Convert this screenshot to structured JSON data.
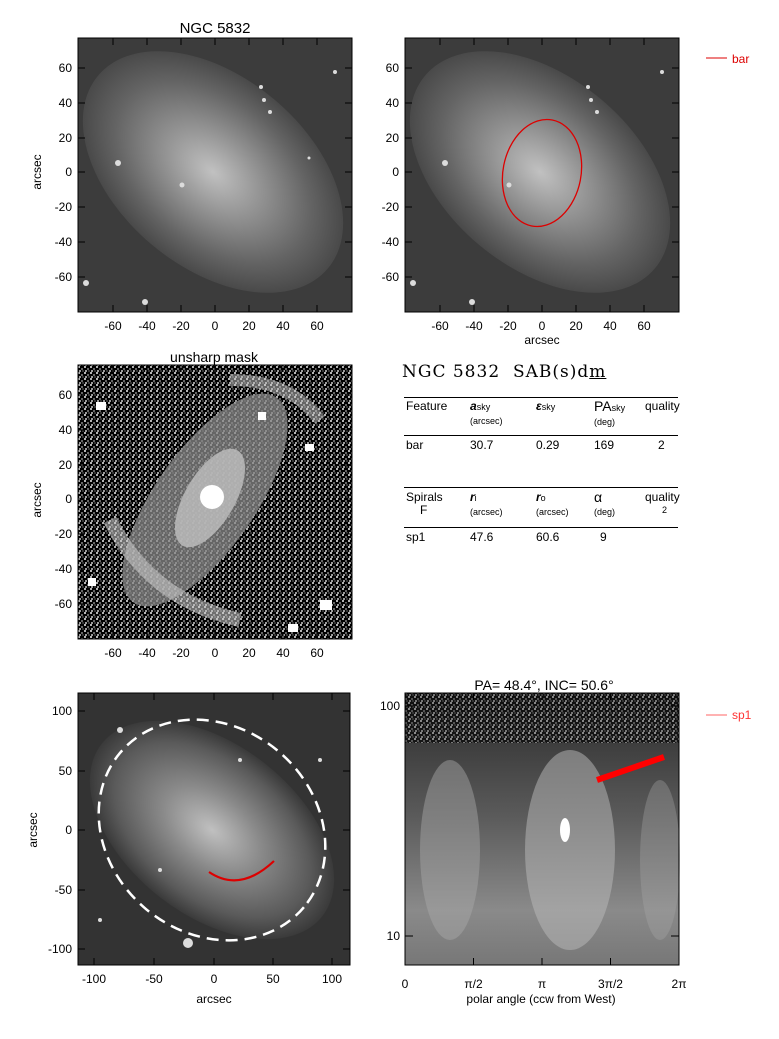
{
  "panels": {
    "top_left": {
      "title": "NGC 5832",
      "ylabel": "arcsec",
      "xticks": [
        "-60",
        "-40",
        "-20",
        "0",
        "20",
        "40",
        "60"
      ],
      "yticks": [
        "60",
        "40",
        "20",
        "0",
        "-20",
        "-40",
        "-60"
      ]
    },
    "top_right": {
      "xlabel": "arcsec",
      "xticks": [
        "-60",
        "-40",
        "-20",
        "0",
        "20",
        "40",
        "60"
      ],
      "yticks": [
        "60",
        "40",
        "20",
        "0",
        "-20",
        "-40",
        "-60"
      ],
      "legend": "bar",
      "legend_color": "#dd0000"
    },
    "mid_left": {
      "title": "unsharp mask",
      "ylabel": "arcsec",
      "xticks": [
        "-60",
        "-40",
        "-20",
        "0",
        "20",
        "40",
        "60"
      ],
      "yticks": [
        "60",
        "40",
        "20",
        "0",
        "-20",
        "-40",
        "-60"
      ]
    },
    "bottom_left": {
      "ylabel": "arcsec",
      "xlabel": "arcsec",
      "xticks": [
        "-100",
        "-50",
        "0",
        "50",
        "100"
      ],
      "yticks": [
        "100",
        "50",
        "0",
        "-50",
        "-100"
      ]
    },
    "bottom_right": {
      "title": "PA=  48.4°, INC=  50.6°",
      "xlabel": "polar angle (ccw from West)",
      "xticks": [
        "0",
        "π/2",
        "π",
        "3π/2",
        "2π"
      ],
      "yticks": [
        "100",
        "10"
      ],
      "legend": "sp1",
      "legend_color": "#ff6666"
    }
  },
  "table": {
    "galaxy": "NGC 5832",
    "type_prefix": "SAB(s)d",
    "type_underlined": "m",
    "bar_header": {
      "feature": "Feature",
      "a": "a",
      "a_sub": "sky",
      "a_unit": "(arcsec)",
      "eps": "ε",
      "eps_sub": "sky",
      "pa": "PA",
      "pa_sub": "sky",
      "pa_unit": "(deg)",
      "quality": "quality"
    },
    "bar_row": {
      "feature": "bar",
      "a": "30.7",
      "eps": "0.29",
      "pa": "169",
      "quality": "2"
    },
    "spiral_header": {
      "feature": "Spirals",
      "feature2": "F",
      "ri": "r",
      "ri_sub": "i",
      "ri_unit": "(arcsec)",
      "ro": "r",
      "ro_sub": "o",
      "ro_unit": "(arcsec)",
      "alpha": "α",
      "alpha_unit": "(deg)",
      "quality": "quality",
      "quality2": "2"
    },
    "spiral_row": {
      "feature": "sp1",
      "ri": "47.6",
      "ro": "60.6",
      "alpha": "9"
    }
  }
}
